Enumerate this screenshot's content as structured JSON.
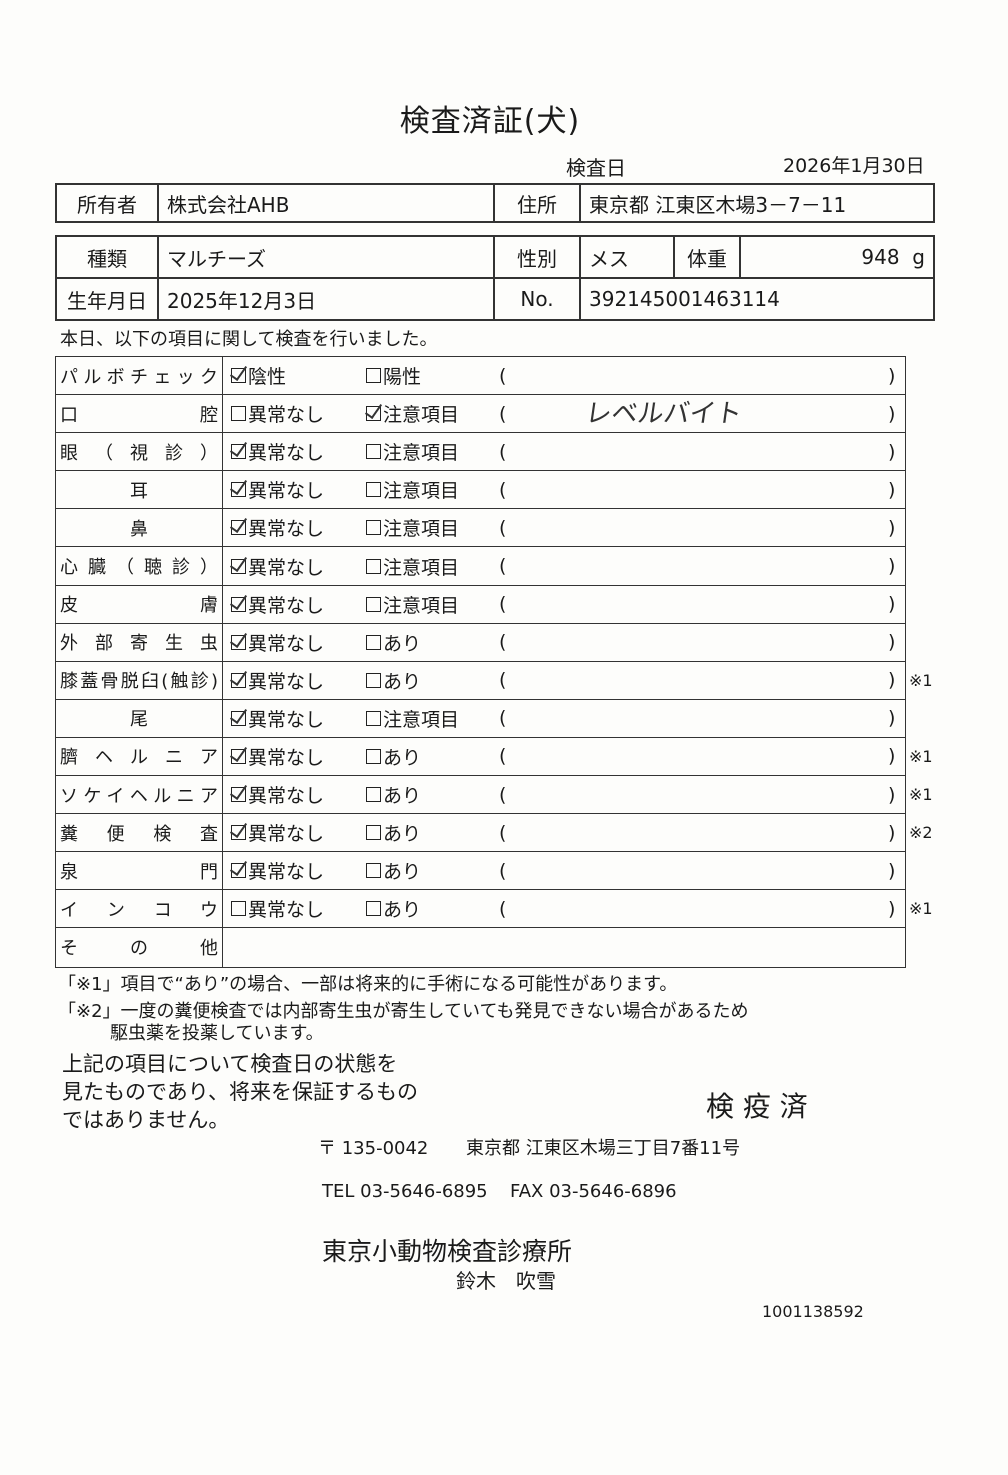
{
  "title": "検査済証(犬)",
  "exam_date_label": "検査日",
  "exam_date": "2026年1月30日",
  "owner": {
    "label": "所有者",
    "value": "株式会社AHB",
    "address_label": "住所",
    "address": "東京都 江東区木場3－7－11"
  },
  "pet": {
    "type_label": "種類",
    "type": "マルチーズ",
    "sex_label": "性別",
    "sex": "メス",
    "weight_label": "体重",
    "weight": "948",
    "weight_unit": "g",
    "birth_label": "生年月日",
    "birth": "2025年12月3日",
    "no_label": "No.",
    "no": "392145001463114"
  },
  "intro": "本日、以下の項目に関して検査を行いました。",
  "items": [
    {
      "label": "パルボチェック",
      "opt1": "陰性",
      "opt2": "陽性",
      "checked": 1,
      "note": "",
      "comment": ""
    },
    {
      "label": "口腔",
      "opt1": "異常なし",
      "opt2": "注意項目",
      "checked": 2,
      "note": "",
      "comment": "レベルバイト"
    },
    {
      "label": "眼（視診）",
      "opt1": "異常なし",
      "opt2": "注意項目",
      "checked": 1,
      "note": "",
      "comment": ""
    },
    {
      "label": "耳",
      "opt1": "異常なし",
      "opt2": "注意項目",
      "checked": 1,
      "note": "",
      "comment": "",
      "center": true
    },
    {
      "label": "鼻",
      "opt1": "異常なし",
      "opt2": "注意項目",
      "checked": 1,
      "note": "",
      "comment": "",
      "center": true
    },
    {
      "label": "心臓（聴診）",
      "opt1": "異常なし",
      "opt2": "注意項目",
      "checked": 1,
      "note": "",
      "comment": ""
    },
    {
      "label": "皮膚",
      "opt1": "異常なし",
      "opt2": "注意項目",
      "checked": 1,
      "note": "",
      "comment": ""
    },
    {
      "label": "外部寄生虫",
      "opt1": "異常なし",
      "opt2": "あり",
      "checked": 1,
      "note": "",
      "comment": ""
    },
    {
      "label": "膝蓋骨脱臼(触診)",
      "opt1": "異常なし",
      "opt2": "あり",
      "checked": 1,
      "note": "※1",
      "comment": ""
    },
    {
      "label": "尾",
      "opt1": "異常なし",
      "opt2": "注意項目",
      "checked": 1,
      "note": "",
      "comment": "",
      "center": true
    },
    {
      "label": "臍ヘルニア",
      "opt1": "異常なし",
      "opt2": "あり",
      "checked": 1,
      "note": "※1",
      "comment": ""
    },
    {
      "label": "ソケイヘルニア",
      "opt1": "異常なし",
      "opt2": "あり",
      "checked": 1,
      "note": "※1",
      "comment": ""
    },
    {
      "label": "糞便検査",
      "opt1": "異常なし",
      "opt2": "あり",
      "checked": 1,
      "note": "※2",
      "comment": ""
    },
    {
      "label": "泉門",
      "opt1": "異常なし",
      "opt2": "あり",
      "checked": 1,
      "note": "",
      "comment": ""
    },
    {
      "label": "インコウ",
      "opt1": "異常なし",
      "opt2": "あり",
      "checked": 0,
      "note": "※1",
      "comment": ""
    }
  ],
  "other_label": "その他",
  "paren_open": "(",
  "paren_close": ")",
  "notes": {
    "n1": "「※1」項目で“あり”の場合、一部は将来的に手術になる可能性があります。",
    "n2a": "「※2」一度の糞便検査では内部寄生虫が寄生していても発見できない場合があるため",
    "n2b": "駆虫薬を投薬しています。"
  },
  "disclaimer": [
    "上記の項目について検査日の状態を",
    "見たものであり、将来を保証するもの",
    "ではありません。"
  ],
  "stamp": "検 疫 済",
  "clinic": {
    "postal": "〒 135-0042",
    "address": "東京都 江東区木場三丁目7番11号",
    "tel": "TEL 03-5646-6895",
    "fax": "FAX 03-5646-6896",
    "name": "東京小動物検査診療所",
    "person": "鈴木　吹雪"
  },
  "serial": "1001138592"
}
